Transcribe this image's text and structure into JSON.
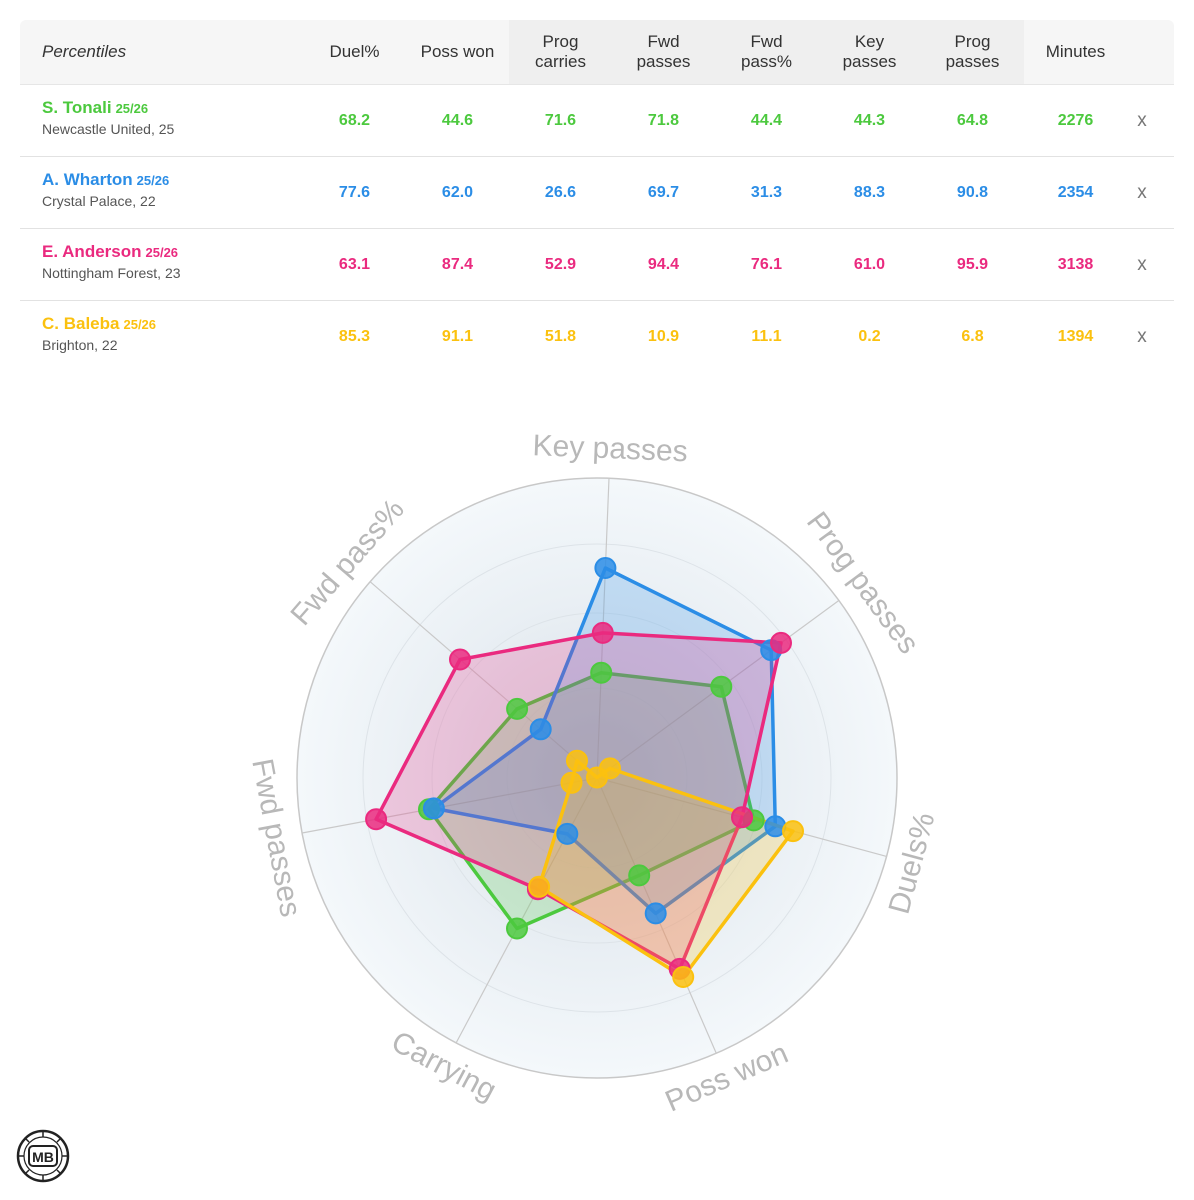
{
  "table": {
    "header": {
      "first": "Percentiles",
      "columns": [
        "Duel%",
        "Poss won",
        "Prog\ncarries",
        "Fwd\npasses",
        "Fwd\npass%",
        "Key\npasses",
        "Prog\npasses",
        "Minutes"
      ]
    },
    "remove_label": "x",
    "players": [
      {
        "name": "S. Tonali",
        "season": "25/26",
        "team": "Newcastle United, 25",
        "color": "#4cc93e",
        "values": [
          "68.2",
          "44.6",
          "71.6",
          "71.8",
          "44.4",
          "44.3",
          "64.8",
          "2276"
        ]
      },
      {
        "name": "A. Wharton",
        "season": "25/26",
        "team": "Crystal Palace, 22",
        "color": "#2b8de6",
        "values": [
          "77.6",
          "62.0",
          "26.6",
          "69.7",
          "31.3",
          "88.3",
          "90.8",
          "2354"
        ]
      },
      {
        "name": "E. Anderson",
        "season": "25/26",
        "team": "Nottingham Forest, 23",
        "color": "#ea2a7f",
        "values": [
          "63.1",
          "87.4",
          "52.9",
          "94.4",
          "76.1",
          "61.0",
          "95.9",
          "3138"
        ]
      },
      {
        "name": "C. Baleba",
        "season": "25/26",
        "team": "Brighton, 22",
        "color": "#fbc10f",
        "values": [
          "85.3",
          "91.1",
          "51.8",
          "10.9",
          "11.1",
          "0.2",
          "6.8",
          "1394"
        ]
      }
    ]
  },
  "chart_data": {
    "type": "radar",
    "axes": [
      "Key passes",
      "Prog passes",
      "Duels%",
      "Poss won",
      "Carrying",
      "Fwd passes",
      "Fwd pass%"
    ],
    "range": [
      0,
      100
    ],
    "series": [
      {
        "name": "S. Tonali",
        "color": "#4cc93e",
        "values": [
          44.3,
          64.8,
          68.2,
          44.6,
          71.6,
          71.8,
          44.4
        ]
      },
      {
        "name": "A. Wharton",
        "color": "#2b8de6",
        "values": [
          88.3,
          90.8,
          77.6,
          62.0,
          26.6,
          69.7,
          31.3
        ]
      },
      {
        "name": "E. Anderson",
        "color": "#ea2a7f",
        "values": [
          61.0,
          95.9,
          63.1,
          87.4,
          52.9,
          94.4,
          76.1
        ]
      },
      {
        "name": "C. Baleba",
        "color": "#fbc10f",
        "values": [
          0.2,
          6.8,
          85.3,
          91.1,
          51.8,
          10.9,
          11.1
        ]
      }
    ]
  },
  "logo": {
    "text": "MB"
  }
}
